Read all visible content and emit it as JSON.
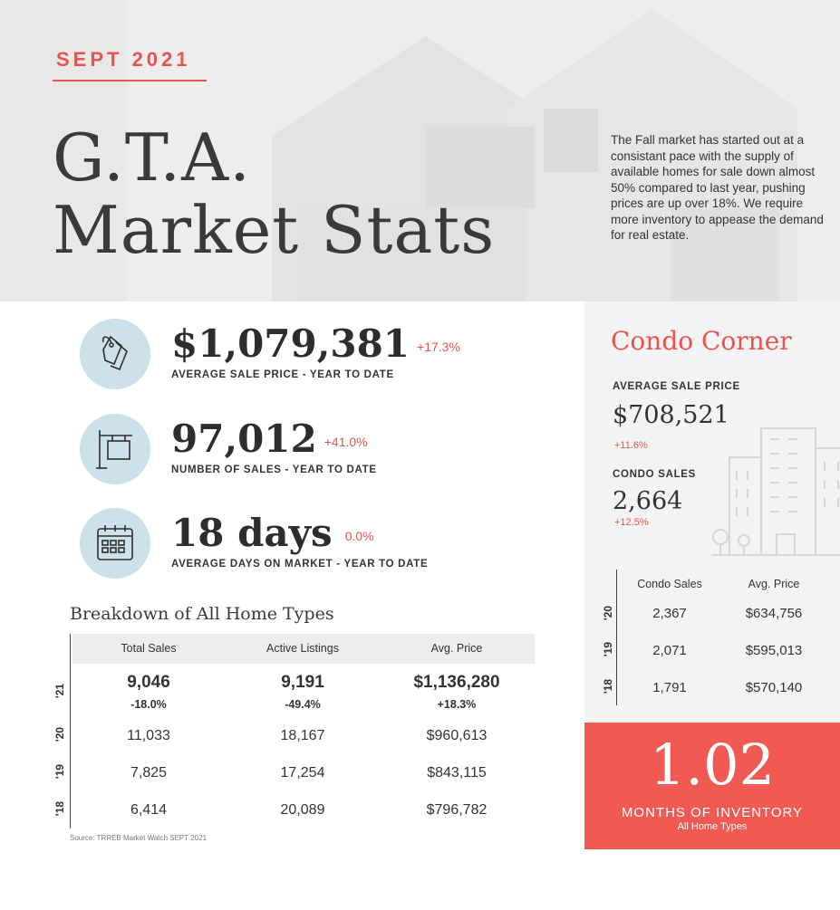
{
  "header": {
    "month": "SEPT 2021",
    "title_line1": "G.T.A.",
    "title_line2": "Market Stats",
    "intro": "The Fall market has started out at a consistant pace with the supply of available homes for sale down almost 50% compared to last year, pushing prices are up over 18%.  We require more inventory to appease the demand for real estate."
  },
  "stats": [
    {
      "value": "$1,079,381",
      "change": "+17.3%",
      "label": "AVERAGE SALE PRICE - YEAR TO DATE",
      "icon": "price-tag-icon"
    },
    {
      "value": "97,012",
      "change": "+41.0%",
      "label": "NUMBER OF SALES - YEAR TO DATE",
      "icon": "sale-sign-icon"
    },
    {
      "value": "18 days",
      "change": "0.0%",
      "label": "AVERAGE DAYS ON MARKET - YEAR TO DATE",
      "icon": "calendar-icon"
    }
  ],
  "breakdown": {
    "title": "Breakdown of All Home Types",
    "columns": [
      "Total Sales",
      "Active Listings",
      "Avg. Price"
    ],
    "rows": [
      {
        "year": "'21",
        "values": [
          "9,046",
          "9,191",
          "$1,136,280"
        ],
        "changes": [
          "-18.0%",
          "-49.4%",
          "+18.3%"
        ]
      },
      {
        "year": "'20",
        "values": [
          "11,033",
          "18,167",
          "$960,613"
        ]
      },
      {
        "year": "'19",
        "values": [
          "7,825",
          "17,254",
          "$843,115"
        ]
      },
      {
        "year": "'18",
        "values": [
          "6,414",
          "20,089",
          "$796,782"
        ]
      }
    ],
    "source": "Source: TRREB Market Watch SEPT 2021"
  },
  "condo": {
    "title": "Condo Corner",
    "avg_price_label": "AVERAGE SALE PRICE",
    "avg_price": "$708,521",
    "avg_price_change": "+11.6%",
    "sales_label": "CONDO SALES",
    "sales": "2,664",
    "sales_change": "+12.5%",
    "columns": [
      "Condo Sales",
      "Avg. Price"
    ],
    "rows": [
      {
        "year": "'20",
        "values": [
          "2,367",
          "$634,756"
        ]
      },
      {
        "year": "'19",
        "values": [
          "2,071",
          "$595,013"
        ]
      },
      {
        "year": "'18",
        "values": [
          "1,791",
          "$570,140"
        ]
      }
    ]
  },
  "inventory": {
    "value": "1.02",
    "label": "MONTHS OF INVENTORY",
    "sub": "All Home Types"
  },
  "colors": {
    "accent": "#e8534f",
    "icon_bg": "#cde1ea",
    "inventory_bg": "#f05a52"
  }
}
